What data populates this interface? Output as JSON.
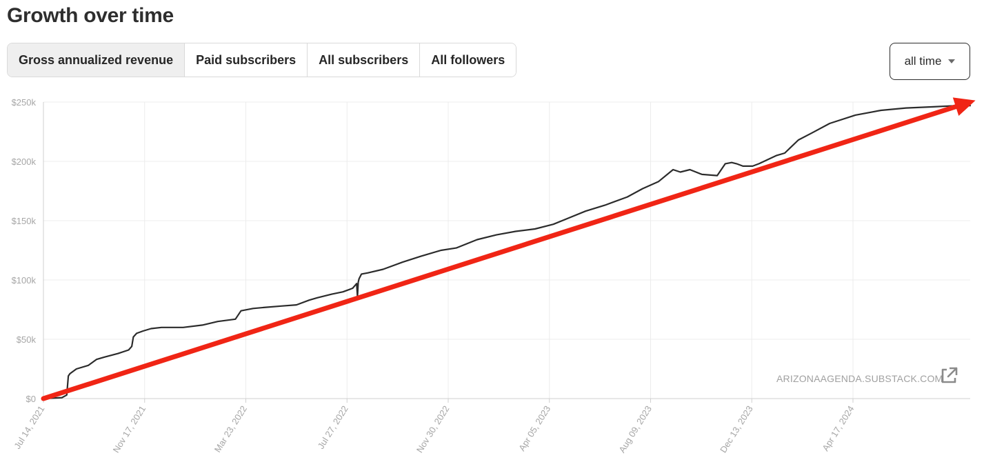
{
  "title": "Growth over time",
  "tabs": [
    {
      "label": "Gross annualized revenue",
      "active": true
    },
    {
      "label": "Paid subscribers",
      "active": false
    },
    {
      "label": "All subscribers",
      "active": false
    },
    {
      "label": "All followers",
      "active": false
    }
  ],
  "range_select": {
    "value": "all time",
    "icon": "chevron-down-icon"
  },
  "watermark": "ARIZONAAGENDA.SUBSTACK.COM",
  "external_link_icon": "external-link-icon",
  "colors": {
    "line": "#2b2b2b",
    "trend_arrow": "#f02515",
    "grid": "#ececec",
    "tick_text": "#a6a6a6",
    "active_tab_bg": "#efefef"
  },
  "chart_data": {
    "type": "line",
    "title": "",
    "xlabel": "",
    "ylabel": "",
    "x_type": "date",
    "xlim": [
      "2021-07-14",
      "2024-09-10"
    ],
    "ylim": [
      0,
      250000
    ],
    "y_ticks": [
      0,
      50000,
      100000,
      150000,
      200000,
      250000
    ],
    "y_tick_labels": [
      "$0",
      "$50k",
      "$100k",
      "$150k",
      "$200k",
      "$250k"
    ],
    "x_ticks": [
      "2021-07-14",
      "2021-11-17",
      "2022-03-23",
      "2022-07-27",
      "2022-11-30",
      "2023-04-05",
      "2023-08-09",
      "2023-12-13",
      "2024-04-17"
    ],
    "x_tick_labels": [
      "Jul 14, 2021",
      "Nov 17, 2021",
      "Mar 23, 2022",
      "Jul 27, 2022",
      "Nov 30, 2022",
      "Apr 05, 2023",
      "Aug 09, 2023",
      "Dec 13, 2023",
      "Apr 17, 2024"
    ],
    "grid": true,
    "legend": "none",
    "series": [
      {
        "x": [
          "2021-07-14",
          "2021-08-06",
          "2021-08-12",
          "2021-08-14",
          "2021-08-16",
          "2021-08-24",
          "2021-09-08",
          "2021-09-18",
          "2021-09-28",
          "2021-10-15",
          "2021-10-28",
          "2021-11-01",
          "2021-11-03",
          "2021-11-07",
          "2021-11-15",
          "2021-11-25",
          "2021-12-08",
          "2022-01-04",
          "2022-01-28",
          "2022-02-16",
          "2022-03-10",
          "2022-03-17",
          "2022-04-01",
          "2022-04-17",
          "2022-05-06",
          "2022-05-25",
          "2022-06-10",
          "2022-06-20",
          "2022-07-08",
          "2022-07-22",
          "2022-08-03",
          "2022-08-08",
          "2022-08-09",
          "2022-08-10",
          "2022-08-11",
          "2022-08-14",
          "2022-08-22",
          "2022-09-10",
          "2022-10-04",
          "2022-10-27",
          "2022-11-21",
          "2022-12-10",
          "2023-01-05",
          "2023-01-29",
          "2023-02-22",
          "2023-03-18",
          "2023-04-10",
          "2023-04-28",
          "2023-05-20",
          "2023-06-13",
          "2023-07-11",
          "2023-07-30",
          "2023-08-19",
          "2023-09-06",
          "2023-09-15",
          "2023-09-27",
          "2023-10-12",
          "2023-10-31",
          "2023-11-10",
          "2023-11-18",
          "2023-11-24",
          "2023-12-02",
          "2023-12-14",
          "2023-12-22",
          "2024-01-13",
          "2024-01-23",
          "2024-02-09",
          "2024-02-26",
          "2024-03-19",
          "2024-04-20",
          "2024-05-22",
          "2024-06-22",
          "2024-07-26",
          "2024-08-24",
          "2024-09-10"
        ],
        "y": [
          0,
          800,
          3000,
          19000,
          21000,
          25000,
          28000,
          33000,
          35000,
          38000,
          41000,
          44000,
          52000,
          55000,
          57000,
          59000,
          60000,
          60000,
          62000,
          65000,
          67000,
          74000,
          76000,
          77000,
          78000,
          79000,
          83000,
          85000,
          88000,
          90000,
          93000,
          97000,
          86000,
          98000,
          101000,
          105000,
          106000,
          109000,
          115000,
          120000,
          125000,
          127000,
          134000,
          138000,
          141000,
          143000,
          147000,
          152000,
          158000,
          163000,
          170000,
          177000,
          183000,
          193000,
          191000,
          193000,
          189000,
          188000,
          198000,
          199000,
          198000,
          196000,
          196000,
          198000,
          205000,
          207000,
          218000,
          224000,
          232000,
          239000,
          243000,
          245000,
          246000,
          247000,
          247000
        ]
      }
    ],
    "annotations": [
      {
        "type": "arrow",
        "label": "",
        "from": {
          "x": "2021-07-14",
          "y": 0
        },
        "to": {
          "x": "2024-09-10",
          "y": 250000
        }
      }
    ]
  }
}
